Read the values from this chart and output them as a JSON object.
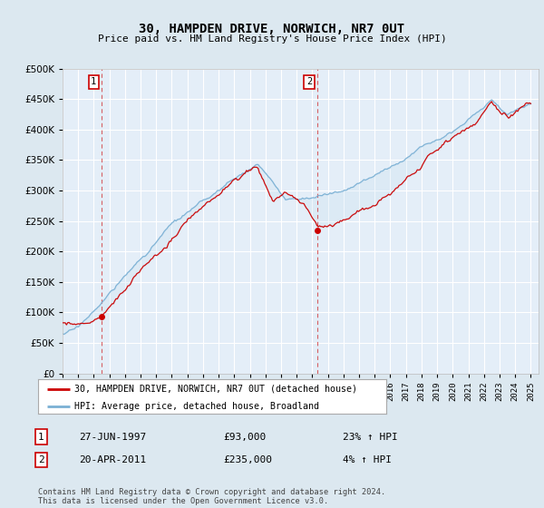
{
  "title": "30, HAMPDEN DRIVE, NORWICH, NR7 0UT",
  "subtitle": "Price paid vs. HM Land Registry's House Price Index (HPI)",
  "legend_line1": "30, HAMPDEN DRIVE, NORWICH, NR7 0UT (detached house)",
  "legend_line2": "HPI: Average price, detached house, Broadland",
  "sale1_date": "27-JUN-1997",
  "sale1_price": "£93,000",
  "sale1_hpi": "23% ↑ HPI",
  "sale1_year": 1997.49,
  "sale1_value": 93000,
  "sale2_date": "20-APR-2011",
  "sale2_price": "£235,000",
  "sale2_hpi": "4% ↑ HPI",
  "sale2_year": 2011.3,
  "sale2_value": 235000,
  "footer": "Contains HM Land Registry data © Crown copyright and database right 2024.\nThis data is licensed under the Open Government Licence v3.0.",
  "bg_color": "#dce8f0",
  "plot_bg": "#e4eef8",
  "grid_color": "#ffffff",
  "red_color": "#cc0000",
  "blue_color": "#7ab0d4",
  "fill_color": "#c5dff0",
  "ylim_min": 0,
  "ylim_max": 500000,
  "yticks": [
    0,
    50000,
    100000,
    150000,
    200000,
    250000,
    300000,
    350000,
    400000,
    450000,
    500000
  ]
}
